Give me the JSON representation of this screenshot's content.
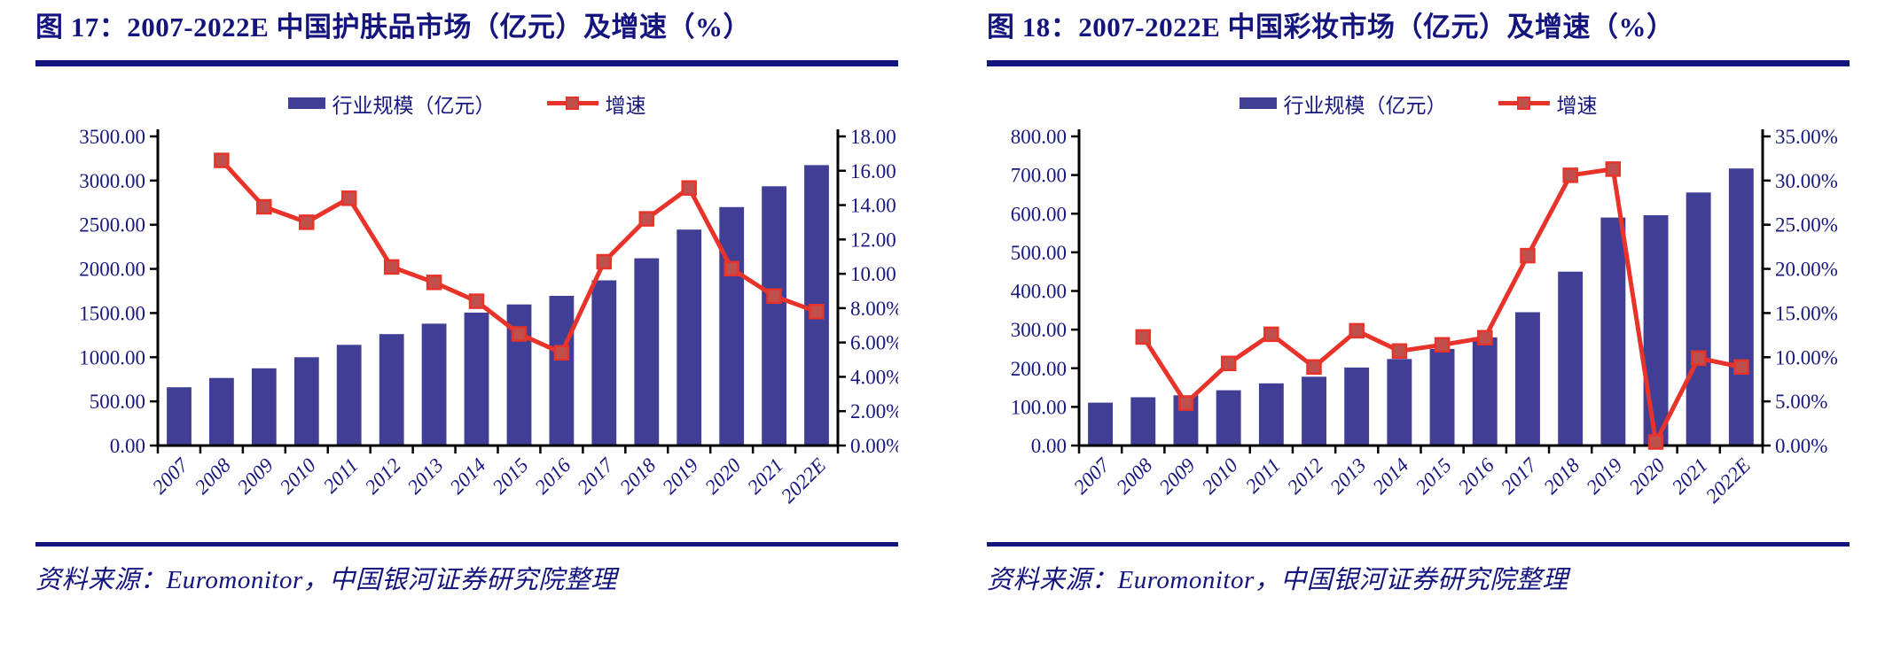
{
  "colors": {
    "bar": "#413e96",
    "line": "#e8332a",
    "marker_fill": "#c0504d",
    "axis": "#000000",
    "label_text": "#17177f",
    "navy": "#14147e"
  },
  "panels": [
    {
      "title": "图 17：2007-2022E 中国护肤品市场（亿元）及增速（%）",
      "source": "资料来源：Euromonitor，中国银河证券研究院整理",
      "legend": [
        "行业规模（亿元）",
        "增速"
      ],
      "chart_data": {
        "type": "bar+line combo",
        "categories": [
          "2007",
          "2008",
          "2009",
          "2010",
          "2011",
          "2012",
          "2013",
          "2014",
          "2015",
          "2016",
          "2017",
          "2018",
          "2019",
          "2020",
          "2021",
          "2022E"
        ],
        "series": [
          {
            "name": "行业规模（亿元）",
            "type": "bar",
            "axis": "left",
            "values": [
              660,
              765,
              875,
              1000,
              1140,
              1262,
              1380,
              1505,
              1598,
              1695,
              1870,
              2120,
              2445,
              2700,
              2935,
              3175
            ]
          },
          {
            "name": "增速",
            "type": "line",
            "axis": "right",
            "values": [
              null,
              16.6,
              13.9,
              13.0,
              14.4,
              10.4,
              9.5,
              8.4,
              6.5,
              5.4,
              10.7,
              13.2,
              15.0,
              10.3,
              8.7,
              7.8
            ]
          }
        ],
        "left_axis": {
          "min": 0,
          "max": 3500,
          "labels_bottom_to_top": [
            "0.00",
            "500.00",
            "1000.00",
            "1500.00",
            "2000.00",
            "2500.00",
            "3000.00",
            "3500.00"
          ]
        },
        "right_axis": {
          "min": 0,
          "max": 18,
          "labels_bottom_to_top": [
            "0.00%",
            "2.00%",
            "4.00%",
            "6.00%",
            "8.00%",
            "10.00",
            "12.00",
            "14.00",
            "16.00",
            "18.00"
          ]
        },
        "grid": "off",
        "legend_position": "top-center"
      }
    },
    {
      "title": "图 18：2007-2022E 中国彩妆市场（亿元）及增速（%）",
      "source": "资料来源：Euromonitor，中国银河证券研究院整理",
      "legend": [
        "行业规模（亿元）",
        "增速"
      ],
      "chart_data": {
        "type": "bar+line combo",
        "categories": [
          "2007",
          "2008",
          "2009",
          "2010",
          "2011",
          "2012",
          "2013",
          "2014",
          "2015",
          "2016",
          "2017",
          "2018",
          "2019",
          "2020",
          "2021",
          "2022E"
        ],
        "series": [
          {
            "name": "行业规模（亿元）",
            "type": "bar",
            "axis": "left",
            "values": [
              111,
              125,
              130,
              143,
              161,
              178,
              202,
              224,
              250,
              280,
              345,
              450,
              590,
              596,
              655,
              717
            ]
          },
          {
            "name": "增速",
            "type": "line",
            "axis": "right",
            "values": [
              null,
              12.3,
              4.8,
              9.3,
              12.6,
              8.9,
              13.0,
              10.7,
              11.4,
              12.2,
              21.5,
              30.6,
              31.3,
              0.4,
              9.9,
              8.9
            ]
          }
        ],
        "left_axis": {
          "min": 0,
          "max": 800,
          "labels_bottom_to_top": [
            "0.00",
            "100.00",
            "200.00",
            "300.00",
            "400.00",
            "500.00",
            "600.00",
            "700.00",
            "800.00"
          ]
        },
        "right_axis": {
          "min": 0,
          "max": 35,
          "labels_bottom_to_top": [
            "0.00%",
            "5.00%",
            "10.00%",
            "15.00%",
            "20.00%",
            "25.00%",
            "30.00%",
            "35.00%"
          ]
        },
        "grid": "off",
        "legend_position": "top-center"
      }
    }
  ]
}
